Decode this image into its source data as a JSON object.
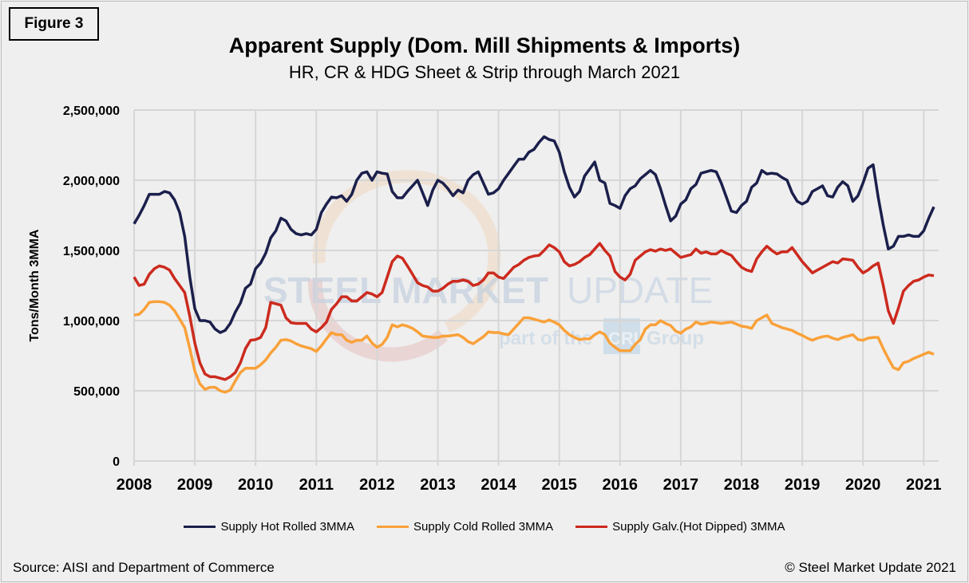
{
  "figure_label": "Figure 3",
  "source": "Source: AISI and Department of Commerce",
  "copyright": "© Steel Market Update 2021",
  "watermark": {
    "line1_bold": "STEEL MARKET",
    "line1_light": "UPDATE",
    "line2": "part of the",
    "badge": "CRU",
    "line2_end": "Group"
  },
  "chart_data": {
    "type": "line",
    "title": "Apparent Supply (Dom. Mill Shipments & Imports)",
    "subtitle": "HR, CR & HDG Sheet & Strip through March 2021",
    "xlabel": "",
    "ylabel": "Tons/Month 3MMA",
    "ylim": [
      0,
      2500000
    ],
    "yticks": [
      0,
      500000,
      1000000,
      1500000,
      2000000,
      2500000
    ],
    "ytick_labels": [
      "0",
      "500,000",
      "1,000,000",
      "1,500,000",
      "2,000,000",
      "2,500,000"
    ],
    "xticks": [
      "2008",
      "2009",
      "2010",
      "2011",
      "2012",
      "2013",
      "2014",
      "2015",
      "2016",
      "2017",
      "2018",
      "2019",
      "2020",
      "2021"
    ],
    "grid": true,
    "legend_position": "bottom",
    "x": [
      "2008-01",
      "2008-02",
      "2008-03",
      "2008-04",
      "2008-05",
      "2008-06",
      "2008-07",
      "2008-08",
      "2008-09",
      "2008-10",
      "2008-11",
      "2008-12",
      "2009-01",
      "2009-02",
      "2009-03",
      "2009-04",
      "2009-05",
      "2009-06",
      "2009-07",
      "2009-08",
      "2009-09",
      "2009-10",
      "2009-11",
      "2009-12",
      "2010-01",
      "2010-02",
      "2010-03",
      "2010-04",
      "2010-05",
      "2010-06",
      "2010-07",
      "2010-08",
      "2010-09",
      "2010-10",
      "2010-11",
      "2010-12",
      "2011-01",
      "2011-02",
      "2011-03",
      "2011-04",
      "2011-05",
      "2011-06",
      "2011-07",
      "2011-08",
      "2011-09",
      "2011-10",
      "2011-11",
      "2011-12",
      "2012-01",
      "2012-02",
      "2012-03",
      "2012-04",
      "2012-05",
      "2012-06",
      "2012-07",
      "2012-08",
      "2012-09",
      "2012-10",
      "2012-11",
      "2012-12",
      "2013-01",
      "2013-02",
      "2013-03",
      "2013-04",
      "2013-05",
      "2013-06",
      "2013-07",
      "2013-08",
      "2013-09",
      "2013-10",
      "2013-11",
      "2013-12",
      "2014-01",
      "2014-02",
      "2014-03",
      "2014-04",
      "2014-05",
      "2014-06",
      "2014-07",
      "2014-08",
      "2014-09",
      "2014-10",
      "2014-11",
      "2014-12",
      "2015-01",
      "2015-02",
      "2015-03",
      "2015-04",
      "2015-05",
      "2015-06",
      "2015-07",
      "2015-08",
      "2015-09",
      "2015-10",
      "2015-11",
      "2015-12",
      "2016-01",
      "2016-02",
      "2016-03",
      "2016-04",
      "2016-05",
      "2016-06",
      "2016-07",
      "2016-08",
      "2016-09",
      "2016-10",
      "2016-11",
      "2016-12",
      "2017-01",
      "2017-02",
      "2017-03",
      "2017-04",
      "2017-05",
      "2017-06",
      "2017-07",
      "2017-08",
      "2017-09",
      "2017-10",
      "2017-11",
      "2017-12",
      "2018-01",
      "2018-02",
      "2018-03",
      "2018-04",
      "2018-05",
      "2018-06",
      "2018-07",
      "2018-08",
      "2018-09",
      "2018-10",
      "2018-11",
      "2018-12",
      "2019-01",
      "2019-02",
      "2019-03",
      "2019-04",
      "2019-05",
      "2019-06",
      "2019-07",
      "2019-08",
      "2019-09",
      "2019-10",
      "2019-11",
      "2019-12",
      "2020-01",
      "2020-02",
      "2020-03",
      "2020-04",
      "2020-05",
      "2020-06",
      "2020-07",
      "2020-08",
      "2020-09",
      "2020-10",
      "2020-11",
      "2020-12",
      "2021-01",
      "2021-02",
      "2021-03"
    ],
    "series": [
      {
        "name": "Supply Hot Rolled 3MMA",
        "color": "#1b1f4b",
        "values": [
          1690000.0,
          1750000.0,
          1820000.0,
          1900000.0,
          1900000.0,
          1900000.0,
          1920000.0,
          1910000.0,
          1860000.0,
          1770000.0,
          1600000.0,
          1310000.0,
          1085000.0,
          1000000.0,
          1000000.0,
          990000.0,
          940000.0,
          915000.0,
          930000.0,
          980000.0,
          1060000.0,
          1125000.0,
          1230000.0,
          1260000.0,
          1370000.0,
          1410000.0,
          1480000.0,
          1590000.0,
          1640000.0,
          1730000.0,
          1710000.0,
          1650000.0,
          1620000.0,
          1610000.0,
          1620000.0,
          1610000.0,
          1650000.0,
          1770000.0,
          1830000.0,
          1880000.0,
          1875000.0,
          1890000.0,
          1850000.0,
          1900000.0,
          2000000.0,
          2050000.0,
          2060000.0,
          2000000.0,
          2060000.0,
          2050000.0,
          2045000.0,
          1920000.0,
          1875000.0,
          1875000.0,
          1920000.0,
          1960000.0,
          2000000.0,
          1910000.0,
          1820000.0,
          1930000.0,
          2000000.0,
          1980000.0,
          1940000.0,
          1890000.0,
          1930000.0,
          1910000.0,
          2000000.0,
          2040000.0,
          2060000.0,
          1980000.0,
          1900000.0,
          1910000.0,
          1940000.0,
          2000000.0,
          2050000.0,
          2100000.0,
          2150000.0,
          2150000.0,
          2200000.0,
          2220000.0,
          2270000.0,
          2310000.0,
          2290000.0,
          2280000.0,
          2200000.0,
          2060000.0,
          1950000.0,
          1880000.0,
          1920000.0,
          2030000.0,
          2080000.0,
          2130000.0,
          2000000.0,
          1980000.0,
          1835000.0,
          1820000.0,
          1800000.0,
          1890000.0,
          1940000.0,
          1960000.0,
          2010000.0,
          2040000.0,
          2070000.0,
          2040000.0,
          1940000.0,
          1820000.0,
          1710000.0,
          1745000.0,
          1830000.0,
          1860000.0,
          1940000.0,
          1970000.0,
          2050000.0,
          2060000.0,
          2070000.0,
          2060000.0,
          1980000.0,
          1880000.0,
          1780000.0,
          1770000.0,
          1820000.0,
          1850000.0,
          1950000.0,
          1980000.0,
          2070000.0,
          2045000.0,
          2050000.0,
          2045000.0,
          2020000.0,
          2000000.0,
          1910000.0,
          1850000.0,
          1830000.0,
          1850000.0,
          1920000.0,
          1940000.0,
          1960000.0,
          1890000.0,
          1880000.0,
          1950000.0,
          1990000.0,
          1960000.0,
          1850000.0,
          1890000.0,
          1980000.0,
          2085000.0,
          2110000.0,
          1880000.0,
          1680000.0,
          1510000.0,
          1530000.0,
          1600000.0,
          1600000.0,
          1610000.0,
          1600000.0,
          1600000.0,
          1640000.0,
          1730000.0,
          1810000.0
        ]
      },
      {
        "name": "Supply Cold Rolled 3MMA",
        "color": "#f9a13a",
        "values": [
          1040000.0,
          1045000.0,
          1080000.0,
          1130000.0,
          1135000.0,
          1135000.0,
          1130000.0,
          1110000.0,
          1070000.0,
          1010000.0,
          950000.0,
          800000.0,
          640000.0,
          550000.0,
          510000.0,
          525000.0,
          525000.0,
          500000.0,
          490000.0,
          505000.0,
          570000.0,
          630000.0,
          660000.0,
          660000.0,
          660000.0,
          685000.0,
          720000.0,
          770000.0,
          810000.0,
          860000.0,
          865000.0,
          855000.0,
          835000.0,
          820000.0,
          810000.0,
          800000.0,
          780000.0,
          820000.0,
          870000.0,
          915000.0,
          900000.0,
          900000.0,
          860000.0,
          845000.0,
          860000.0,
          860000.0,
          890000.0,
          840000.0,
          810000.0,
          830000.0,
          880000.0,
          970000.0,
          955000.0,
          970000.0,
          960000.0,
          945000.0,
          920000.0,
          890000.0,
          885000.0,
          880000.0,
          880000.0,
          890000.0,
          890000.0,
          895000.0,
          900000.0,
          880000.0,
          850000.0,
          835000.0,
          860000.0,
          885000.0,
          920000.0,
          915000.0,
          915000.0,
          905000.0,
          900000.0,
          940000.0,
          980000.0,
          1020000.0,
          1020000.0,
          1010000.0,
          1000000.0,
          990000.0,
          1005000.0,
          990000.0,
          970000.0,
          930000.0,
          900000.0,
          880000.0,
          865000.0,
          870000.0,
          870000.0,
          900000.0,
          920000.0,
          900000.0,
          840000.0,
          810000.0,
          785000.0,
          785000.0,
          785000.0,
          830000.0,
          865000.0,
          940000.0,
          970000.0,
          970000.0,
          1000000.0,
          980000.0,
          965000.0,
          925000.0,
          910000.0,
          940000.0,
          955000.0,
          990000.0,
          975000.0,
          980000.0,
          990000.0,
          985000.0,
          980000.0,
          985000.0,
          990000.0,
          975000.0,
          960000.0,
          955000.0,
          945000.0,
          1000000.0,
          1020000.0,
          1040000.0,
          980000.0,
          965000.0,
          950000.0,
          940000.0,
          930000.0,
          910000.0,
          895000.0,
          875000.0,
          860000.0,
          875000.0,
          885000.0,
          890000.0,
          875000.0,
          865000.0,
          880000.0,
          890000.0,
          900000.0,
          865000.0,
          860000.0,
          875000.0,
          880000.0,
          880000.0,
          800000.0,
          730000.0,
          665000.0,
          650000.0,
          700000.0,
          710000.0,
          730000.0,
          745000.0,
          760000.0,
          775000.0,
          760000.0
        ]
      },
      {
        "name": "Supply Galv.(Hot Dipped) 3MMA",
        "color": "#cc2a1e",
        "values": [
          1310000.0,
          1250000.0,
          1260000.0,
          1330000.0,
          1370000.0,
          1390000.0,
          1380000.0,
          1360000.0,
          1300000.0,
          1250000.0,
          1200000.0,
          1030000.0,
          840000.0,
          700000.0,
          620000.0,
          600000.0,
          600000.0,
          590000.0,
          580000.0,
          600000.0,
          630000.0,
          700000.0,
          800000.0,
          860000.0,
          865000.0,
          880000.0,
          950000.0,
          1130000.0,
          1120000.0,
          1110000.0,
          1020000.0,
          985000.0,
          980000.0,
          980000.0,
          980000.0,
          940000.0,
          920000.0,
          950000.0,
          990000.0,
          1080000.0,
          1120000.0,
          1170000.0,
          1170000.0,
          1140000.0,
          1140000.0,
          1170000.0,
          1200000.0,
          1190000.0,
          1170000.0,
          1200000.0,
          1310000.0,
          1420000.0,
          1460000.0,
          1445000.0,
          1390000.0,
          1330000.0,
          1270000.0,
          1250000.0,
          1240000.0,
          1210000.0,
          1210000.0,
          1230000.0,
          1260000.0,
          1280000.0,
          1280000.0,
          1290000.0,
          1280000.0,
          1250000.0,
          1260000.0,
          1290000.0,
          1340000.0,
          1340000.0,
          1310000.0,
          1300000.0,
          1340000.0,
          1380000.0,
          1400000.0,
          1430000.0,
          1450000.0,
          1460000.0,
          1465000.0,
          1500000.0,
          1540000.0,
          1520000.0,
          1490000.0,
          1420000.0,
          1390000.0,
          1400000.0,
          1420000.0,
          1450000.0,
          1470000.0,
          1510000.0,
          1550000.0,
          1500000.0,
          1460000.0,
          1350000.0,
          1310000.0,
          1290000.0,
          1330000.0,
          1430000.0,
          1460000.0,
          1490000.0,
          1505000.0,
          1495000.0,
          1510000.0,
          1500000.0,
          1510000.0,
          1480000.0,
          1450000.0,
          1460000.0,
          1470000.0,
          1510000.0,
          1480000.0,
          1490000.0,
          1475000.0,
          1475000.0,
          1500000.0,
          1480000.0,
          1465000.0,
          1420000.0,
          1380000.0,
          1360000.0,
          1350000.0,
          1440000.0,
          1490000.0,
          1530000.0,
          1500000.0,
          1475000.0,
          1490000.0,
          1490000.0,
          1520000.0,
          1470000.0,
          1420000.0,
          1380000.0,
          1340000.0,
          1360000.0,
          1380000.0,
          1400000.0,
          1420000.0,
          1410000.0,
          1440000.0,
          1435000.0,
          1430000.0,
          1380000.0,
          1340000.0,
          1360000.0,
          1390000.0,
          1410000.0,
          1250000.0,
          1070000.0,
          980000.0,
          1090000.0,
          1210000.0,
          1250000.0,
          1280000.0,
          1290000.0,
          1310000.0,
          1325000.0,
          1320000.0
        ]
      }
    ]
  }
}
